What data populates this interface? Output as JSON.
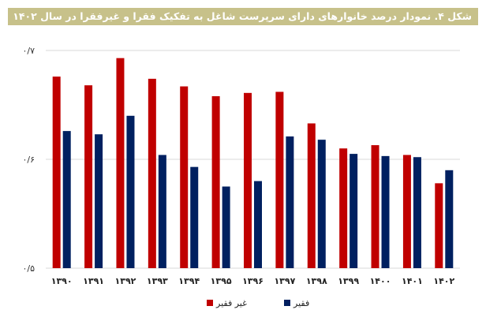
{
  "chart_data": {
    "type": "bar",
    "title": "شکل ۴. نمودار درصد خانوارهای دارای سرپرست شاغل به تفکیک فقرا و غیرفقرا در سال ۱۴۰۲",
    "categories": [
      "۱۳۹۰",
      "۱۳۹۱",
      "۱۳۹۲",
      "۱۳۹۳",
      "۱۳۹۴",
      "۱۳۹۵",
      "۱۳۹۶",
      "۱۳۹۷",
      "۱۳۹۸",
      "۱۳۹۹",
      "۱۴۰۰",
      "۱۴۰۱",
      "۱۴۰۲"
    ],
    "series": [
      {
        "name": "غیر فقیر",
        "color": "#c00000",
        "values": [
          0.676,
          0.668,
          0.693,
          0.674,
          0.667,
          0.658,
          0.661,
          0.662,
          0.633,
          0.61,
          0.613,
          0.604,
          0.578
        ]
      },
      {
        "name": "فقیر",
        "color": "#002060",
        "values": [
          0.626,
          0.623,
          0.64,
          0.604,
          0.593,
          0.575,
          0.58,
          0.621,
          0.618,
          0.605,
          0.603,
          0.602,
          0.59
        ]
      }
    ],
    "ylim": [
      0.5,
      0.7
    ],
    "yticks": [
      0.5,
      0.6,
      0.7
    ],
    "ytick_labels": [
      "۰/۵",
      "۰/۶",
      "۰/۷"
    ],
    "grid": true,
    "legend_position": "bottom-center"
  }
}
